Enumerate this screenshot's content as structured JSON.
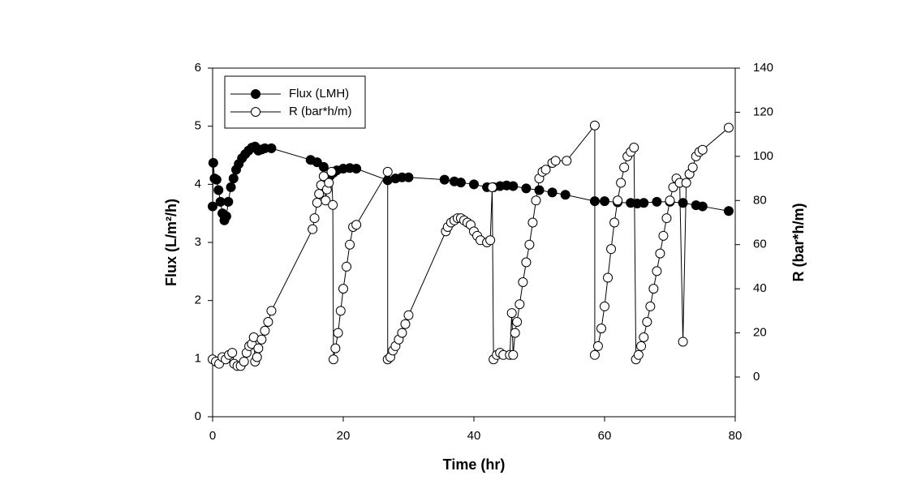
{
  "chart_data": {
    "type": "scatter-line",
    "x_label": "Time (hr)",
    "y_label": "Flux (L/m²/h)",
    "y2_label": "R (bar*h/m)",
    "xlim": [
      0,
      80
    ],
    "xticks": [
      0,
      20,
      40,
      60,
      80
    ],
    "ylim": [
      0,
      6
    ],
    "yticks": [
      0,
      1,
      2,
      3,
      4,
      5,
      6
    ],
    "y2lim": [
      -18,
      140
    ],
    "y2ticks": [
      0,
      20,
      40,
      60,
      80,
      100,
      120,
      140
    ],
    "legend": "top-left",
    "series": [
      {
        "name": "Flux (LMH)",
        "color": "#000000",
        "marker_fill": "#000000",
        "x": [
          0,
          0.1,
          0.3,
          0.6,
          0.9,
          1.2,
          1.5,
          1.8,
          2.1,
          2.4,
          2.8,
          3.2,
          3.6,
          4,
          4.5,
          5,
          5.5,
          6,
          6.5,
          7,
          7.5,
          8,
          9,
          15,
          16,
          17,
          18,
          18.5,
          19,
          20,
          21,
          22,
          26.8,
          28,
          29,
          30,
          35.5,
          37,
          38,
          40,
          42,
          43,
          44,
          45,
          46,
          48,
          50,
          52,
          54,
          58.5,
          60,
          62,
          64,
          65,
          66,
          68,
          70,
          72,
          74,
          75,
          79
        ],
        "values": [
          3.62,
          4.37,
          4.1,
          4.08,
          3.9,
          3.7,
          3.5,
          3.38,
          3.45,
          3.7,
          3.95,
          4.1,
          4.25,
          4.35,
          4.45,
          4.52,
          4.58,
          4.63,
          4.65,
          4.58,
          4.6,
          4.62,
          4.62,
          4.42,
          4.38,
          4.3,
          4.15,
          4.2,
          4.24,
          4.27,
          4.28,
          4.27,
          4.07,
          4.1,
          4.12,
          4.12,
          4.08,
          4.05,
          4.03,
          4.0,
          3.95,
          3.95,
          3.97,
          3.98,
          3.97,
          3.93,
          3.9,
          3.86,
          3.82,
          3.71,
          3.71,
          3.69,
          3.68,
          3.67,
          3.68,
          3.7,
          3.7,
          3.68,
          3.64,
          3.62,
          3.54
        ]
      },
      {
        "name": "R (bar*h/m)",
        "color": "#000000",
        "marker_fill": "#ffffff",
        "axis": "y2",
        "x": [
          0,
          0.5,
          1,
          1.5,
          2,
          2.5,
          3,
          3.3,
          3.8,
          4.3,
          4.8,
          5.2,
          5.6,
          6,
          6.3,
          6.5,
          6.8,
          7,
          7.5,
          8,
          8.5,
          9,
          15.3,
          15.6,
          16,
          16.3,
          16.6,
          17,
          17.3,
          17.5,
          17.8,
          18.2,
          18.4,
          18.5,
          18.8,
          19.2,
          19.6,
          20,
          20.5,
          21,
          21.5,
          22,
          26.8,
          26.8,
          27.2,
          27.6,
          28,
          28.5,
          29,
          29.5,
          30,
          35.7,
          36,
          36.5,
          37,
          37.5,
          38,
          38.5,
          39,
          39.5,
          40,
          40.5,
          41,
          42,
          42.5,
          42.8,
          43,
          43.5,
          44,
          44.5,
          45.5,
          45.8,
          46,
          46.3,
          46.6,
          47,
          47.5,
          48,
          48.5,
          49,
          49.5,
          50,
          50.5,
          51,
          52,
          52.5,
          54.2,
          58.5,
          58.5,
          59,
          59.5,
          60,
          60.5,
          61,
          61.5,
          62,
          62.5,
          63,
          63.5,
          64,
          64.5,
          64.8,
          65.2,
          65.6,
          66,
          66.5,
          67,
          67.5,
          68,
          68.5,
          69,
          69.5,
          70,
          70.5,
          71,
          71.5,
          72,
          72.5,
          73,
          73.5,
          74,
          74.5,
          75,
          79
        ],
        "values": [
          8,
          7,
          6,
          9,
          8,
          10,
          11,
          6,
          5,
          5,
          7,
          11,
          14,
          15,
          18,
          7,
          9,
          13,
          17,
          21,
          25,
          30,
          67,
          72,
          79,
          83,
          87,
          91,
          80,
          85,
          88,
          93,
          78,
          8,
          13,
          20,
          30,
          40,
          50,
          60,
          68,
          69,
          93,
          8,
          9,
          12,
          14,
          17,
          20,
          24,
          28,
          66,
          68,
          70,
          71,
          72,
          72,
          71,
          70,
          69,
          66,
          64,
          62,
          61,
          62,
          86,
          8,
          10,
          11,
          10,
          10,
          29,
          10,
          20,
          25,
          33,
          43,
          52,
          60,
          70,
          80,
          90,
          93,
          94,
          97,
          98,
          98,
          114,
          10,
          14,
          22,
          32,
          45,
          58,
          70,
          80,
          88,
          95,
          100,
          102,
          104,
          8,
          10,
          14,
          18,
          25,
          32,
          40,
          48,
          56,
          64,
          72,
          80,
          86,
          90,
          88,
          16,
          88,
          92,
          95,
          100,
          102,
          103,
          113
        ]
      }
    ]
  }
}
